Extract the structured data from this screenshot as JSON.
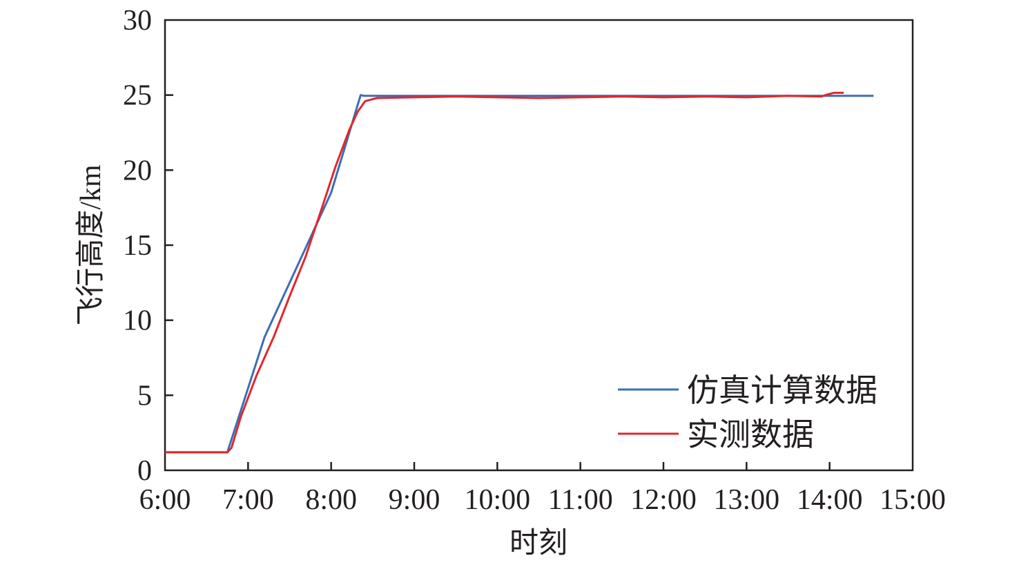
{
  "chart_data": {
    "type": "line",
    "title": "",
    "xlabel": "时刻",
    "ylabel": "飞行高度/km",
    "xlim": [
      6,
      15
    ],
    "ylim": [
      0,
      30
    ],
    "x_unit": "hour of day",
    "xticks": [
      6,
      7,
      8,
      9,
      10,
      11,
      12,
      13,
      14,
      15
    ],
    "xtick_labels": [
      "6:00",
      "7:00",
      "8:00",
      "9:00",
      "10:00",
      "11:00",
      "12:00",
      "13:00",
      "14:00",
      "15:00"
    ],
    "yticks": [
      0,
      5,
      10,
      15,
      20,
      25,
      30
    ],
    "ytick_labels": [
      "0",
      "5",
      "10",
      "15",
      "20",
      "25",
      "30"
    ],
    "grid": false,
    "legend_position": "bottom-right",
    "series": [
      {
        "name": "仿真计算数据",
        "color": "#3a6db5",
        "x": [
          6.0,
          6.75,
          7.2,
          8.0,
          8.355,
          8.4,
          10.0,
          12.0,
          14.53
        ],
        "y": [
          1.2,
          1.2,
          8.9,
          18.5,
          25.0,
          24.95,
          24.95,
          24.95,
          24.95
        ]
      },
      {
        "name": "实测数据",
        "color": "#e3262c",
        "x": [
          6.0,
          6.75,
          6.8,
          6.915,
          7.1,
          7.31,
          7.5,
          7.69,
          7.89,
          8.05,
          8.22,
          8.32,
          8.41,
          8.55,
          9.0,
          9.5,
          10.0,
          10.5,
          11.0,
          11.5,
          12.0,
          12.5,
          13.0,
          13.5,
          13.9,
          13.98,
          14.05,
          14.17
        ],
        "y": [
          1.2,
          1.2,
          1.5,
          3.6,
          6.3,
          8.9,
          11.6,
          14.2,
          17.5,
          20.2,
          22.7,
          23.9,
          24.6,
          24.8,
          24.85,
          24.9,
          24.85,
          24.8,
          24.85,
          24.9,
          24.85,
          24.9,
          24.85,
          24.95,
          24.9,
          25.05,
          25.15,
          25.15
        ]
      }
    ]
  }
}
